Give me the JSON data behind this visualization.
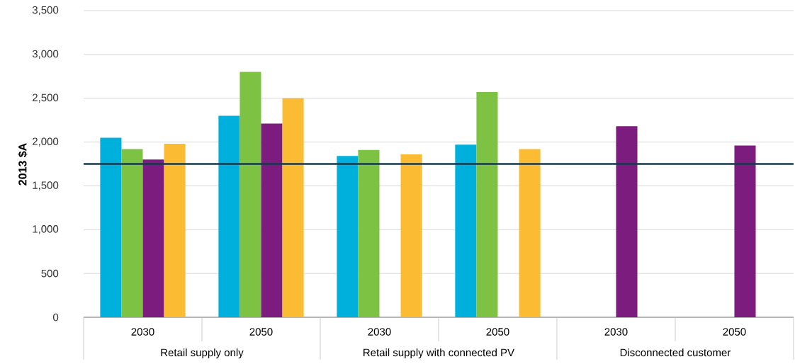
{
  "chart_data": {
    "type": "bar",
    "ylabel": "2013 $A",
    "categories": [
      "2030",
      "2050",
      "2030",
      "2050",
      "2030",
      "2050"
    ],
    "annotations": [
      "Retail supply only",
      "Retail supply with connected PV",
      "Disconnected customer"
    ],
    "series": [
      {
        "color": "#00b0dc",
        "values": [
          2050,
          2300,
          1840,
          1970,
          null,
          null
        ]
      },
      {
        "color": "#7dc242",
        "values": [
          1920,
          2800,
          1910,
          2570,
          null,
          null
        ]
      },
      {
        "color": "#7b1c7e",
        "values": [
          1800,
          2210,
          null,
          null,
          2180,
          1960
        ]
      },
      {
        "color": "#fbbc33",
        "values": [
          1980,
          2500,
          1860,
          1920,
          null,
          null
        ]
      }
    ],
    "ylim": [
      0,
      3500
    ],
    "yticks": [
      0,
      {
        "value": 500,
        "label": "500"
      },
      {
        "value": 1000,
        "label": "1,000"
      },
      {
        "value": 1500,
        "label": "1,500"
      },
      {
        "value": 2000,
        "label": "2,000"
      },
      {
        "value": 2500,
        "label": "2,500"
      },
      {
        "value": 3000,
        "label": "3,000"
      },
      {
        "value": 3500,
        "label": "3,500"
      }
    ],
    "ref_lines": [
      {
        "axis": "y",
        "value": 1750,
        "color": "#17394f"
      }
    ],
    "grid": "y"
  }
}
